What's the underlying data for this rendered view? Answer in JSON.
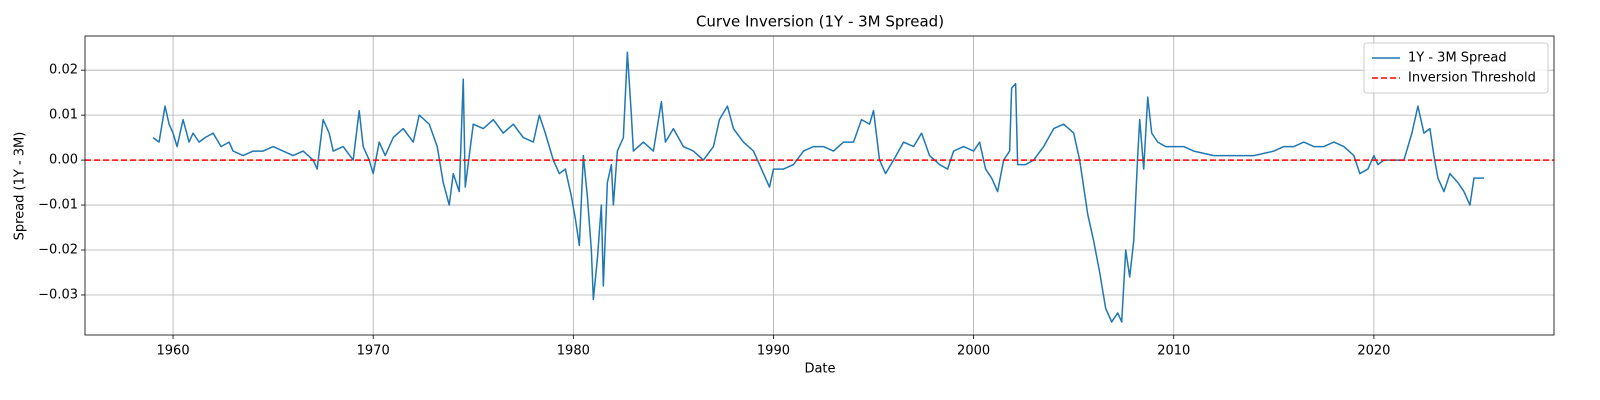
{
  "chart_data": {
    "type": "line",
    "title": "Curve Inversion (1Y - 3M Spread)",
    "x_label": "Date",
    "y_label": "Spread (1Y - 3M)",
    "xlim": [
      1955.6,
      2029.0
    ],
    "ylim": [
      -0.0389,
      0.0276
    ],
    "xticks": [
      1960,
      1970,
      1980,
      1990,
      2000,
      2010,
      2020
    ],
    "yticks": [
      {
        "value": -0.03,
        "label": "−0.03"
      },
      {
        "value": -0.02,
        "label": "−0.02"
      },
      {
        "value": -0.01,
        "label": "−0.01"
      },
      {
        "value": 0,
        "label": "0.00"
      },
      {
        "value": 0.01,
        "label": "0.01"
      },
      {
        "value": 0.02,
        "label": "0.02"
      }
    ],
    "grid": true,
    "legend": "upper right",
    "x": [
      1959.0,
      1959.3,
      1959.6,
      1959.8,
      1960.0,
      1960.2,
      1960.5,
      1960.8,
      1961.0,
      1961.3,
      1961.6,
      1962.0,
      1962.4,
      1962.8,
      1963.0,
      1963.5,
      1964.0,
      1964.5,
      1965.0,
      1965.5,
      1966.0,
      1966.5,
      1967.0,
      1967.2,
      1967.5,
      1967.8,
      1968.0,
      1968.5,
      1969.0,
      1969.3,
      1969.5,
      1969.8,
      1970.0,
      1970.3,
      1970.6,
      1971.0,
      1971.5,
      1972.0,
      1972.3,
      1972.8,
      1973.2,
      1973.5,
      1973.8,
      1974.0,
      1974.3,
      1974.5,
      1974.6,
      1975.0,
      1975.5,
      1976.0,
      1976.5,
      1977.0,
      1977.5,
      1978.0,
      1978.3,
      1978.6,
      1979.0,
      1979.3,
      1979.6,
      1979.9,
      1980.1,
      1980.3,
      1980.5,
      1980.7,
      1980.9,
      1981.0,
      1981.2,
      1981.4,
      1981.5,
      1981.7,
      1981.9,
      1982.0,
      1982.2,
      1982.5,
      1982.7,
      1982.9,
      1983.0,
      1983.5,
      1984.0,
      1984.4,
      1984.6,
      1985.0,
      1985.5,
      1986.0,
      1986.5,
      1987.0,
      1987.3,
      1987.7,
      1988.0,
      1988.5,
      1989.0,
      1989.4,
      1989.8,
      1990.0,
      1990.5,
      1991.0,
      1991.5,
      1992.0,
      1992.5,
      1993.0,
      1993.5,
      1994.0,
      1994.4,
      1994.8,
      1995.0,
      1995.3,
      1995.6,
      1996.0,
      1996.5,
      1997.0,
      1997.4,
      1997.8,
      1998.3,
      1998.7,
      1999.0,
      1999.5,
      2000.0,
      2000.3,
      2000.6,
      2000.9,
      2001.2,
      2001.5,
      2001.8,
      2001.9,
      2002.1,
      2002.2,
      2002.6,
      2003.0,
      2003.5,
      2004.0,
      2004.5,
      2005.0,
      2005.3,
      2005.7,
      2006.0,
      2006.3,
      2006.6,
      2006.9,
      2007.2,
      2007.4,
      2007.6,
      2007.8,
      2008.0,
      2008.2,
      2008.3,
      2008.5,
      2008.7,
      2008.9,
      2009.2,
      2009.6,
      2010.0,
      2010.5,
      2011.0,
      2012.0,
      2013.0,
      2014.0,
      2015.0,
      2015.5,
      2016.0,
      2016.5,
      2017.0,
      2017.5,
      2018.0,
      2018.5,
      2019.0,
      2019.3,
      2019.7,
      2020.0,
      2020.2,
      2020.5,
      2021.0,
      2021.5,
      2021.9,
      2022.2,
      2022.5,
      2022.8,
      2023.0,
      2023.2,
      2023.5,
      2023.8,
      2024.2,
      2024.5,
      2024.8,
      2025.0,
      2025.5
    ],
    "series": [
      {
        "name": "1Y - 3M Spread",
        "color": "#1f77b4",
        "values": [
          0.005,
          0.004,
          0.012,
          0.008,
          0.006,
          0.003,
          0.009,
          0.004,
          0.006,
          0.004,
          0.005,
          0.006,
          0.003,
          0.004,
          0.002,
          0.001,
          0.002,
          0.002,
          0.003,
          0.002,
          0.001,
          0.002,
          0.0,
          -0.002,
          0.009,
          0.006,
          0.002,
          0.003,
          0.0,
          0.011,
          0.003,
          0.0,
          -0.003,
          0.004,
          0.001,
          0.005,
          0.007,
          0.004,
          0.01,
          0.008,
          0.003,
          -0.005,
          -0.01,
          -0.003,
          -0.007,
          0.018,
          -0.006,
          0.008,
          0.007,
          0.009,
          0.006,
          0.008,
          0.005,
          0.004,
          0.01,
          0.006,
          0.0,
          -0.003,
          -0.002,
          -0.008,
          -0.013,
          -0.019,
          0.001,
          -0.008,
          -0.02,
          -0.031,
          -0.022,
          -0.01,
          -0.028,
          -0.005,
          -0.001,
          -0.01,
          0.002,
          0.005,
          0.024,
          0.01,
          0.002,
          0.004,
          0.002,
          0.013,
          0.004,
          0.007,
          0.003,
          0.002,
          0.0,
          0.003,
          0.009,
          0.012,
          0.007,
          0.004,
          0.002,
          -0.002,
          -0.006,
          -0.002,
          -0.002,
          -0.001,
          0.002,
          0.003,
          0.003,
          0.002,
          0.004,
          0.004,
          0.009,
          0.008,
          0.011,
          0.0,
          -0.003,
          0.0,
          0.004,
          0.003,
          0.006,
          0.001,
          -0.001,
          -0.002,
          0.002,
          0.003,
          0.002,
          0.004,
          -0.002,
          -0.004,
          -0.007,
          0.0,
          0.002,
          0.016,
          0.017,
          -0.001,
          -0.001,
          0.0,
          0.003,
          0.007,
          0.008,
          0.006,
          0.0,
          -0.012,
          -0.018,
          -0.025,
          -0.033,
          -0.036,
          -0.034,
          -0.036,
          -0.02,
          -0.026,
          -0.018,
          0.001,
          0.009,
          -0.002,
          0.014,
          0.006,
          0.004,
          0.003,
          0.003,
          0.003,
          0.002,
          0.001,
          0.001,
          0.001,
          0.002,
          0.003,
          0.003,
          0.004,
          0.003,
          0.003,
          0.004,
          0.003,
          0.001,
          -0.003,
          -0.002,
          0.001,
          -0.001,
          0.0,
          0.0,
          0.0,
          0.006,
          0.012,
          0.006,
          0.007,
          0.001,
          -0.004,
          -0.007,
          -0.003,
          -0.005,
          -0.007,
          -0.01,
          -0.004,
          -0.004
        ]
      }
    ],
    "threshold": {
      "name": "Inversion Threshold",
      "value": 0,
      "color": "#ff0000"
    }
  }
}
